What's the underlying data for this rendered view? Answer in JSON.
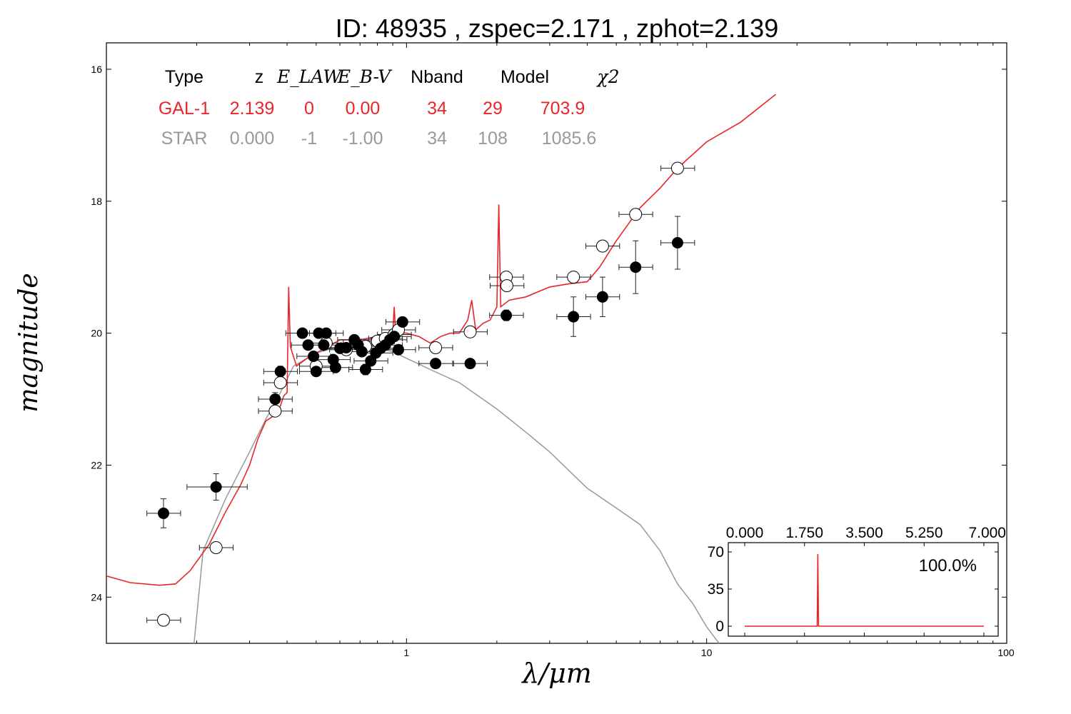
{
  "chart_data": [
    {
      "type": "scatter",
      "title": "ID:  48935 , zspec=2.171 , zphot=2.139",
      "xlabel": "λ/μm",
      "ylabel": "magnitude",
      "x_scale": "log",
      "y_inverted": true,
      "xlim": [
        0.1,
        100
      ],
      "ylim": [
        24.7,
        15.6
      ],
      "x_ticks": [
        1,
        10,
        100
      ],
      "x_tick_labels": [
        "1",
        "10",
        "100"
      ],
      "y_ticks": [
        16,
        18,
        20,
        22,
        24
      ],
      "y_tick_labels": [
        "16",
        "18",
        "20",
        "22",
        "24"
      ],
      "grid": false,
      "legend_table": {
        "headers": [
          "Type",
          "z",
          "E_LAW",
          "E_B-V",
          "Nband",
          "Model",
          "χ2"
        ],
        "rows": [
          {
            "color": "#e8262a",
            "cells": [
              "GAL-1",
              "2.139",
              "0",
              "0.00",
              "34",
              "29",
              "703.9"
            ]
          },
          {
            "color": "#999999",
            "cells": [
              "STAR",
              "0.000",
              "-1",
              "-1.00",
              "34",
              "108",
              "1085.6"
            ]
          }
        ]
      },
      "colors": {
        "galaxy_model": "#e8262a",
        "star_model": "#999999",
        "observed": "#000000",
        "model_mag": "#ffffff"
      },
      "series": [
        {
          "marker": "filled-circle",
          "points": [
            {
              "x": 0.155,
              "y": 22.73,
              "err": 0.22
            },
            {
              "x": 0.232,
              "y": 22.33,
              "err": 0.2,
              "xerr": [
                0.2,
                0.27
              ]
            },
            {
              "x": 0.365,
              "y": 21.0,
              "err": 0.1
            },
            {
              "x": 0.38,
              "y": 20.58,
              "err": 0.08
            },
            {
              "x": 0.45,
              "y": 20.0
            },
            {
              "x": 0.47,
              "y": 20.18
            },
            {
              "x": 0.49,
              "y": 20.35
            },
            {
              "x": 0.5,
              "y": 20.58
            },
            {
              "x": 0.51,
              "y": 20.0
            },
            {
              "x": 0.53,
              "y": 20.18
            },
            {
              "x": 0.54,
              "y": 20.0
            },
            {
              "x": 0.57,
              "y": 20.4
            },
            {
              "x": 0.58,
              "y": 20.52
            },
            {
              "x": 0.6,
              "y": 20.23
            },
            {
              "x": 0.63,
              "y": 20.22
            },
            {
              "x": 0.67,
              "y": 20.1
            },
            {
              "x": 0.69,
              "y": 20.18
            },
            {
              "x": 0.71,
              "y": 20.28
            },
            {
              "x": 0.73,
              "y": 20.55,
              "err": 0.08
            },
            {
              "x": 0.76,
              "y": 20.42
            },
            {
              "x": 0.79,
              "y": 20.3
            },
            {
              "x": 0.82,
              "y": 20.23
            },
            {
              "x": 0.85,
              "y": 20.18
            },
            {
              "x": 0.88,
              "y": 20.1
            },
            {
              "x": 0.91,
              "y": 20.05
            },
            {
              "x": 0.94,
              "y": 20.25
            },
            {
              "x": 0.97,
              "y": 19.83,
              "err": 0.07
            },
            {
              "x": 1.25,
              "y": 20.46,
              "err": 0.05
            },
            {
              "x": 1.63,
              "y": 20.46,
              "err": 0.05
            },
            {
              "x": 2.15,
              "y": 19.73,
              "err": 0.08
            },
            {
              "x": 3.6,
              "y": 19.75,
              "err": 0.3
            },
            {
              "x": 4.5,
              "y": 19.45,
              "err": 0.3
            },
            {
              "x": 5.8,
              "y": 19.0,
              "err": 0.4
            },
            {
              "x": 8.0,
              "y": 18.63,
              "err": 0.4
            }
          ]
        },
        {
          "marker": "open-circle",
          "points": [
            {
              "x": 0.155,
              "y": 24.35
            },
            {
              "x": 0.232,
              "y": 23.25
            },
            {
              "x": 0.365,
              "y": 21.18
            },
            {
              "x": 0.38,
              "y": 20.75
            },
            {
              "x": 0.5,
              "y": 20.5
            },
            {
              "x": 0.54,
              "y": 20.15
            },
            {
              "x": 0.63,
              "y": 20.25
            },
            {
              "x": 0.73,
              "y": 20.2
            },
            {
              "x": 0.8,
              "y": 20.12
            },
            {
              "x": 0.85,
              "y": 20.08
            },
            {
              "x": 0.91,
              "y": 20.02
            },
            {
              "x": 0.94,
              "y": 19.95
            },
            {
              "x": 1.25,
              "y": 20.22
            },
            {
              "x": 1.63,
              "y": 19.98
            },
            {
              "x": 2.15,
              "y": 19.15
            },
            {
              "x": 2.16,
              "y": 19.28
            },
            {
              "x": 3.6,
              "y": 19.15
            },
            {
              "x": 4.5,
              "y": 18.68
            },
            {
              "x": 5.8,
              "y": 18.2
            },
            {
              "x": 8.0,
              "y": 17.5
            }
          ]
        }
      ],
      "model_curves": [
        {
          "role": "galaxy",
          "points": [
            [
              0.1,
              23.68
            ],
            [
              0.12,
              23.78
            ],
            [
              0.15,
              23.82
            ],
            [
              0.17,
              23.8
            ],
            [
              0.19,
              23.6
            ],
            [
              0.22,
              23.2
            ],
            [
              0.25,
              22.7
            ],
            [
              0.28,
              22.3
            ],
            [
              0.3,
              22.0
            ],
            [
              0.32,
              21.6
            ],
            [
              0.34,
              21.33
            ],
            [
              0.37,
              21.22
            ],
            [
              0.38,
              21.1
            ],
            [
              0.39,
              20.95
            ],
            [
              0.4,
              20.9
            ],
            [
              0.405,
              19.3
            ],
            [
              0.41,
              20.2
            ],
            [
              0.43,
              20.5
            ],
            [
              0.46,
              20.4
            ],
            [
              0.5,
              20.3
            ],
            [
              0.55,
              20.2
            ],
            [
              0.6,
              20.1
            ],
            [
              0.7,
              20.1
            ],
            [
              0.8,
              20.05
            ],
            [
              0.9,
              20.0
            ],
            [
              0.91,
              19.6
            ],
            [
              0.92,
              20.0
            ],
            [
              1.0,
              20.0
            ],
            [
              1.1,
              20.05
            ],
            [
              1.2,
              20.15
            ],
            [
              1.3,
              20.05
            ],
            [
              1.4,
              20.0
            ],
            [
              1.5,
              20.0
            ],
            [
              1.6,
              19.8
            ],
            [
              1.65,
              19.5
            ],
            [
              1.7,
              19.95
            ],
            [
              1.8,
              19.85
            ],
            [
              1.9,
              19.8
            ],
            [
              2.0,
              19.6
            ],
            [
              2.03,
              18.05
            ],
            [
              2.06,
              19.6
            ],
            [
              2.2,
              19.5
            ],
            [
              2.5,
              19.45
            ],
            [
              3.0,
              19.3
            ],
            [
              3.5,
              19.25
            ],
            [
              4.0,
              19.22
            ],
            [
              4.4,
              19.0
            ],
            [
              5.0,
              18.6
            ],
            [
              6.0,
              18.1
            ],
            [
              7.0,
              17.8
            ],
            [
              8.0,
              17.5
            ],
            [
              10.0,
              17.1
            ],
            [
              13.0,
              16.8
            ],
            [
              17.0,
              16.38
            ]
          ]
        },
        {
          "role": "star",
          "points": [
            [
              0.196,
              24.7
            ],
            [
              0.21,
              23.3
            ],
            [
              0.25,
              22.5
            ],
            [
              0.3,
              21.8
            ],
            [
              0.34,
              21.3
            ],
            [
              0.38,
              20.9
            ],
            [
              0.42,
              20.5
            ],
            [
              0.5,
              20.3
            ],
            [
              0.6,
              20.2
            ],
            [
              0.8,
              20.23
            ],
            [
              0.9,
              20.28
            ],
            [
              1.0,
              20.38
            ],
            [
              1.2,
              20.55
            ],
            [
              1.5,
              20.75
            ],
            [
              2.0,
              21.15
            ],
            [
              2.5,
              21.5
            ],
            [
              3.0,
              21.8
            ],
            [
              4.0,
              22.35
            ],
            [
              5.0,
              22.65
            ],
            [
              6.0,
              22.9
            ],
            [
              7.0,
              23.3
            ],
            [
              8.0,
              23.8
            ],
            [
              9.0,
              24.1
            ],
            [
              10.0,
              24.45
            ],
            [
              11.0,
              24.7
            ]
          ]
        }
      ]
    },
    {
      "type": "line",
      "caption": "100.0%",
      "xlim": [
        0,
        7
      ],
      "ylim": [
        -5,
        75
      ],
      "x_ticks": [
        0,
        1.75,
        3.5,
        5.25,
        7
      ],
      "x_tick_labels": [
        "0.000",
        "1.750",
        "3.500",
        "5.250",
        "7.000"
      ],
      "y_ticks": [
        0,
        35,
        70
      ],
      "y_tick_labels": [
        "0",
        "35",
        "70"
      ],
      "color": "#e8262a",
      "points": [
        [
          0.0,
          0
        ],
        [
          2.12,
          0
        ],
        [
          2.139,
          68
        ],
        [
          2.16,
          0
        ],
        [
          7.0,
          0
        ]
      ]
    }
  ]
}
